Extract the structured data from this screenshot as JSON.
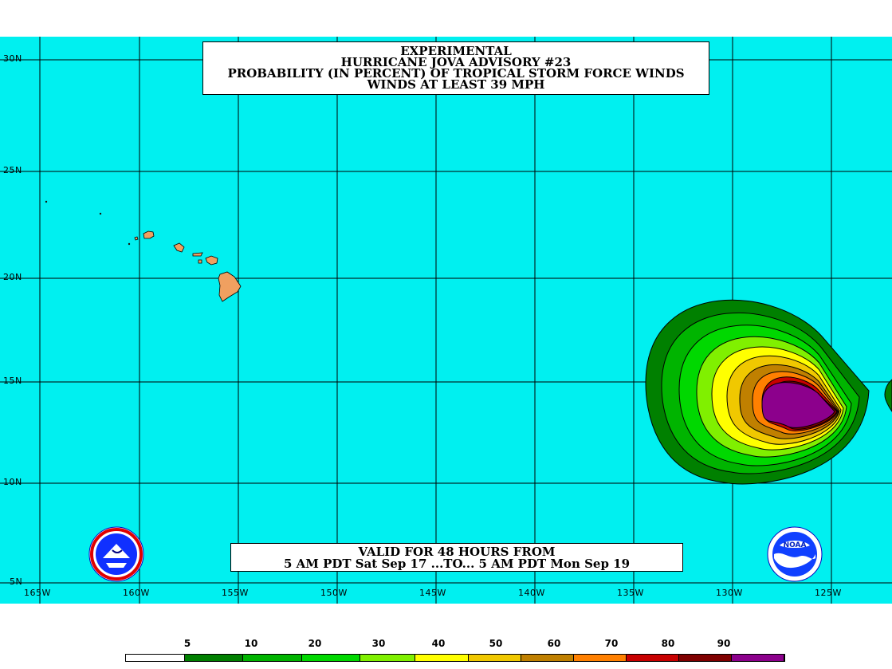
{
  "title_lines": [
    "EXPERIMENTAL",
    "HURRICANE JOVA ADVISORY #23",
    "PROBABILITY (IN PERCENT) OF TROPICAL STORM FORCE WINDS",
    "WINDS AT LEAST 39 MPH"
  ],
  "valid_lines": [
    "VALID FOR 48 HOURS FROM",
    "5 AM PDT Sat Sep 17 ...TO... 5 AM PDT Mon Sep 19"
  ],
  "lat_labels": [
    "30N",
    "25N",
    "20N",
    "15N",
    "10N",
    "5N"
  ],
  "lon_labels": [
    "165W",
    "160W",
    "155W",
    "150W",
    "145W",
    "140W",
    "135W",
    "130W",
    "125W"
  ],
  "legend": {
    "labels": [
      "5",
      "10",
      "20",
      "30",
      "40",
      "50",
      "60",
      "70",
      "80",
      "90"
    ],
    "colors": [
      "#ffffff",
      "#008000",
      "#00b400",
      "#00d800",
      "#80f000",
      "#ffff00",
      "#f0c800",
      "#c08000",
      "#ff8000",
      "#c80000",
      "#800000",
      "#8c008c"
    ]
  },
  "colors": {
    "ocean": "#00f0f0",
    "land": "#f0a060"
  }
}
